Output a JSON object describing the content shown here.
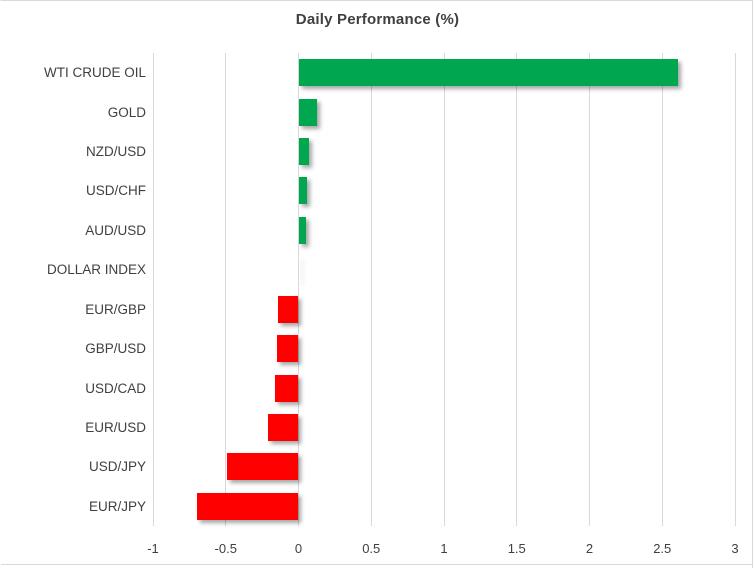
{
  "chart_data": {
    "type": "bar",
    "orientation": "horizontal",
    "title": "Daily Performance (%)",
    "categories": [
      "WTI CRUDE OIL",
      "GOLD",
      "NZD/USD",
      "USD/CHF",
      "AUD/USD",
      "DOLLAR INDEX",
      "EUR/GBP",
      "GBP/USD",
      "USD/CAD",
      "EUR/USD",
      "USD/JPY",
      "EUR/JPY"
    ],
    "values": [
      2.61,
      0.13,
      0.07,
      0.06,
      0.05,
      0.0,
      -0.14,
      -0.15,
      -0.16,
      -0.21,
      -0.49,
      -0.7
    ],
    "xlabel": "",
    "ylabel": "",
    "xlim": [
      -1,
      3
    ],
    "x_ticks": [
      -1,
      -0.5,
      0,
      0.5,
      1,
      1.5,
      2,
      2.5,
      3
    ],
    "x_tick_labels": [
      "-1",
      "-0.5",
      "0",
      "0.5",
      "1",
      "1.5",
      "2",
      "2.5",
      "3"
    ],
    "grid": "vertical",
    "legend": "none",
    "colors": {
      "positive": "#00A650",
      "negative": "#FE0000",
      "gridline": "#D9D9D9",
      "title_text": "#404040",
      "axis_text": "#404040",
      "border": "#D9D9D9"
    }
  }
}
